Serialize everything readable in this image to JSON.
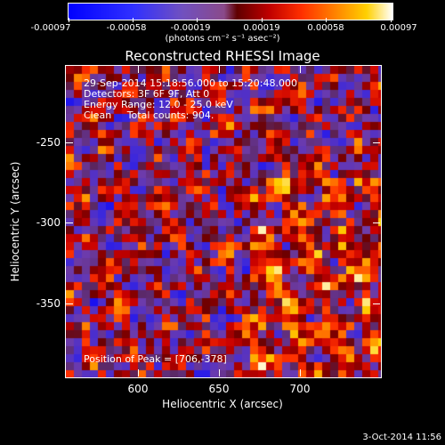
{
  "colorbar": {
    "tick_labels": [
      "-0.00097",
      "-0.00058",
      "-0.00019",
      "0.00019",
      "0.00058",
      "0.00097"
    ],
    "units_label": "(photons cm⁻² s⁻¹ asec⁻²)"
  },
  "plot": {
    "title": "Reconstructed RHESSI Image",
    "info_lines": [
      "29-Sep-2014 15:18:56.000 to 15:20:48.000",
      "Detectors: 3F 6F 9F, Att 0",
      "Energy Range: 12.0 - 25.0 keV",
      "Clean     Total counts: 904."
    ],
    "peak_label": "Position of Peak = [706,-378]",
    "xlabel": "Heliocentric X (arcsec)",
    "ylabel": "Heliocentric Y (arcsec)",
    "x_ticks": [
      "600",
      "650",
      "700"
    ],
    "y_ticks": [
      "-250",
      "-300",
      "-350"
    ]
  },
  "footer": {
    "timestamp": "3-Oct-2014 11:56"
  }
}
